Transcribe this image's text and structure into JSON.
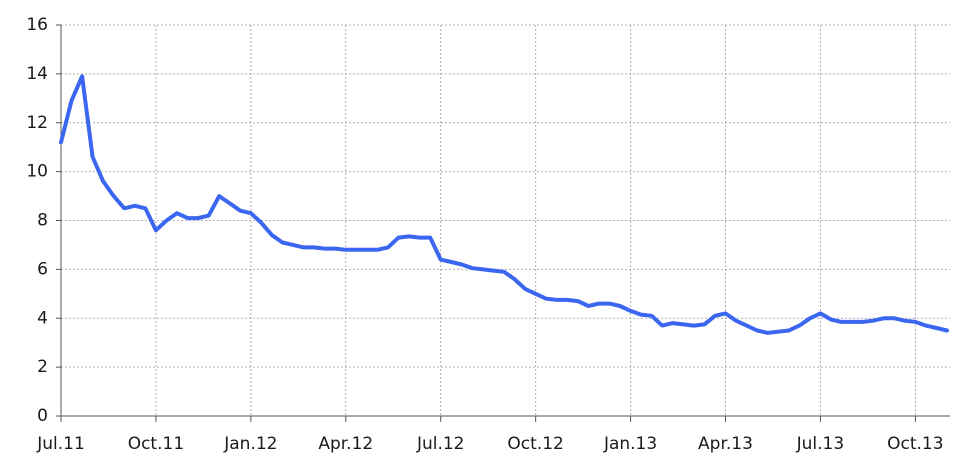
{
  "chart_data": {
    "type": "line",
    "categories": [
      "Jul.11",
      null,
      null,
      null,
      null,
      null,
      null,
      null,
      null,
      "Oct.11",
      null,
      null,
      null,
      null,
      null,
      null,
      null,
      null,
      "Jan.12",
      null,
      null,
      null,
      null,
      null,
      null,
      null,
      null,
      "Apr.12",
      null,
      null,
      null,
      null,
      null,
      null,
      null,
      null,
      "Jul.12",
      null,
      null,
      null,
      null,
      null,
      null,
      null,
      null,
      "Oct.12",
      null,
      null,
      null,
      null,
      null,
      null,
      null,
      null,
      "Jan.13",
      null,
      null,
      null,
      null,
      null,
      null,
      null,
      null,
      "Apr.13",
      null,
      null,
      null,
      null,
      null,
      null,
      null,
      null,
      "Jul.13",
      null,
      null,
      null,
      null,
      null,
      null,
      null,
      null,
      "Oct.13",
      null,
      null,
      null
    ],
    "series": [
      {
        "color": "#3a66f0",
        "values": [
          11.2,
          12.9,
          13.9,
          10.6,
          9.6,
          9.0,
          8.5,
          8.6,
          8.5,
          7.6,
          8.0,
          8.3,
          8.1,
          8.1,
          8.2,
          9.0,
          8.7,
          8.4,
          8.3,
          7.9,
          7.4,
          7.1,
          7.0,
          6.9,
          6.9,
          6.85,
          6.85,
          6.8,
          6.8,
          6.8,
          6.8,
          6.9,
          7.3,
          7.35,
          7.3,
          7.3,
          6.4,
          6.3,
          6.2,
          6.05,
          6.0,
          5.95,
          5.9,
          5.6,
          5.2,
          5.0,
          4.8,
          4.75,
          4.75,
          4.7,
          4.5,
          4.6,
          4.6,
          4.5,
          4.3,
          4.15,
          4.1,
          3.7,
          3.8,
          3.75,
          3.7,
          3.75,
          4.1,
          4.2,
          3.9,
          3.7,
          3.5,
          3.4,
          3.45,
          3.5,
          3.7,
          4.0,
          4.2,
          3.95,
          3.85,
          3.85,
          3.85,
          3.9,
          4.0,
          4.0,
          3.9,
          3.85,
          3.7,
          3.6,
          3.5
        ]
      }
    ],
    "ylim": [
      0,
      16
    ],
    "yticks": [
      0,
      2,
      4,
      6,
      8,
      10,
      12,
      14,
      16
    ],
    "grid": true
  }
}
